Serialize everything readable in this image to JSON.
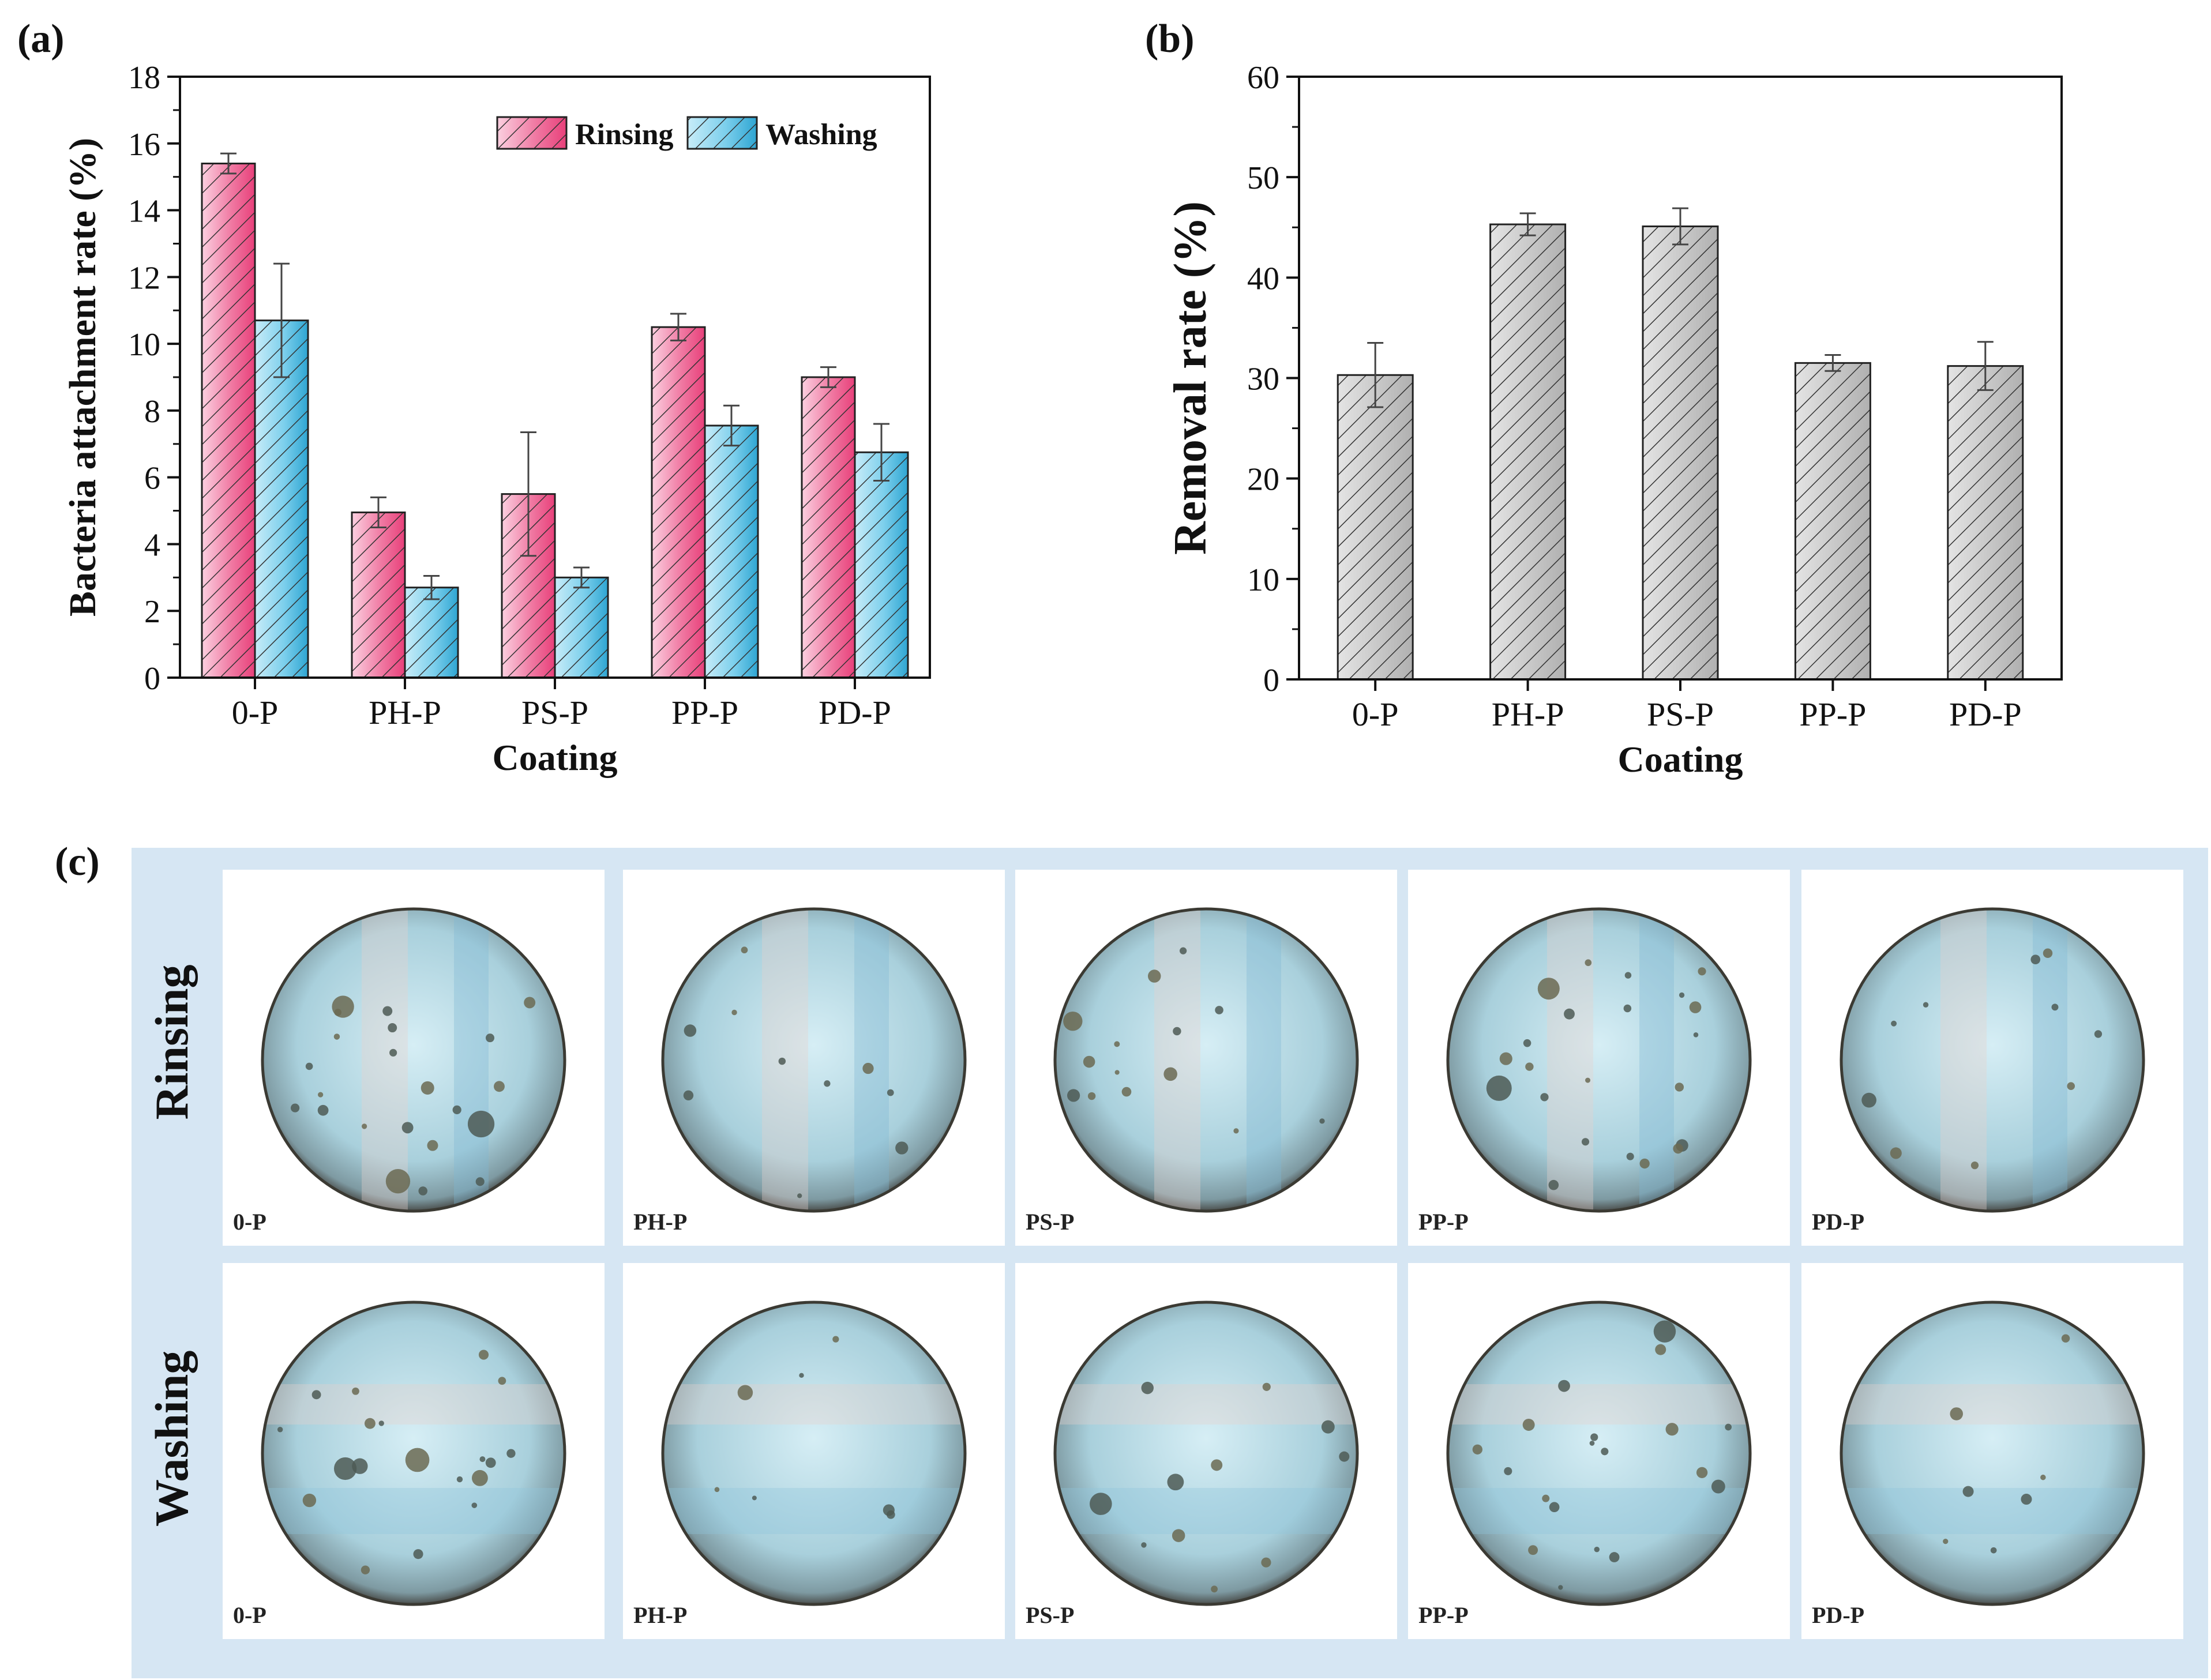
{
  "panel_labels": {
    "a": "(a)",
    "b": "(b)",
    "c": "(c)"
  },
  "colors": {
    "rinsing": "#e8407a",
    "rinsing_light": "#fbd0e0",
    "washing": "#3fb3dc",
    "washing_light": "#c8ecf8",
    "removal": "#b8b8b8",
    "removal_light": "#e2e2e2",
    "panel_c_bg": "#d6e6f3"
  },
  "chart_data": [
    {
      "type": "bar",
      "panel": "(a)",
      "title": "",
      "xlabel": "Coating",
      "ylabel": "Bacteria attachment rate (%)",
      "categories": [
        "0-P",
        "PH-P",
        "PS-P",
        "PP-P",
        "PD-P"
      ],
      "ylim": [
        0,
        18
      ],
      "yticks": [
        0,
        2,
        4,
        6,
        8,
        10,
        12,
        14,
        16,
        18
      ],
      "legend_position": "top-right",
      "series": [
        {
          "name": "Rinsing",
          "values": [
            15.4,
            4.95,
            5.5,
            10.5,
            9.0
          ],
          "errors": [
            0.3,
            0.45,
            1.85,
            0.4,
            0.3
          ]
        },
        {
          "name": "Washing",
          "values": [
            10.7,
            2.7,
            3.0,
            7.55,
            6.75
          ],
          "errors": [
            1.7,
            0.35,
            0.3,
            0.6,
            0.85
          ]
        }
      ]
    },
    {
      "type": "bar",
      "panel": "(b)",
      "title": "",
      "xlabel": "Coating",
      "ylabel": "Removal rate (%)",
      "categories": [
        "0-P",
        "PH-P",
        "PS-P",
        "PP-P",
        "PD-P"
      ],
      "ylim": [
        0,
        60
      ],
      "yticks": [
        0,
        10,
        20,
        30,
        40,
        50,
        60
      ],
      "series": [
        {
          "name": "Removal",
          "values": [
            30.3,
            45.3,
            45.1,
            31.5,
            31.2
          ],
          "errors": [
            3.2,
            1.1,
            1.8,
            0.8,
            2.4
          ]
        }
      ]
    }
  ],
  "panel_c": {
    "rows": [
      {
        "label": "Rinsing",
        "samples": [
          "0-P",
          "PH-P",
          "PS-P",
          "PP-P",
          "PD-P"
        ]
      },
      {
        "label": "Washing",
        "samples": [
          "0-P",
          "PH-P",
          "PS-P",
          "PP-P",
          "PD-P"
        ]
      }
    ]
  }
}
